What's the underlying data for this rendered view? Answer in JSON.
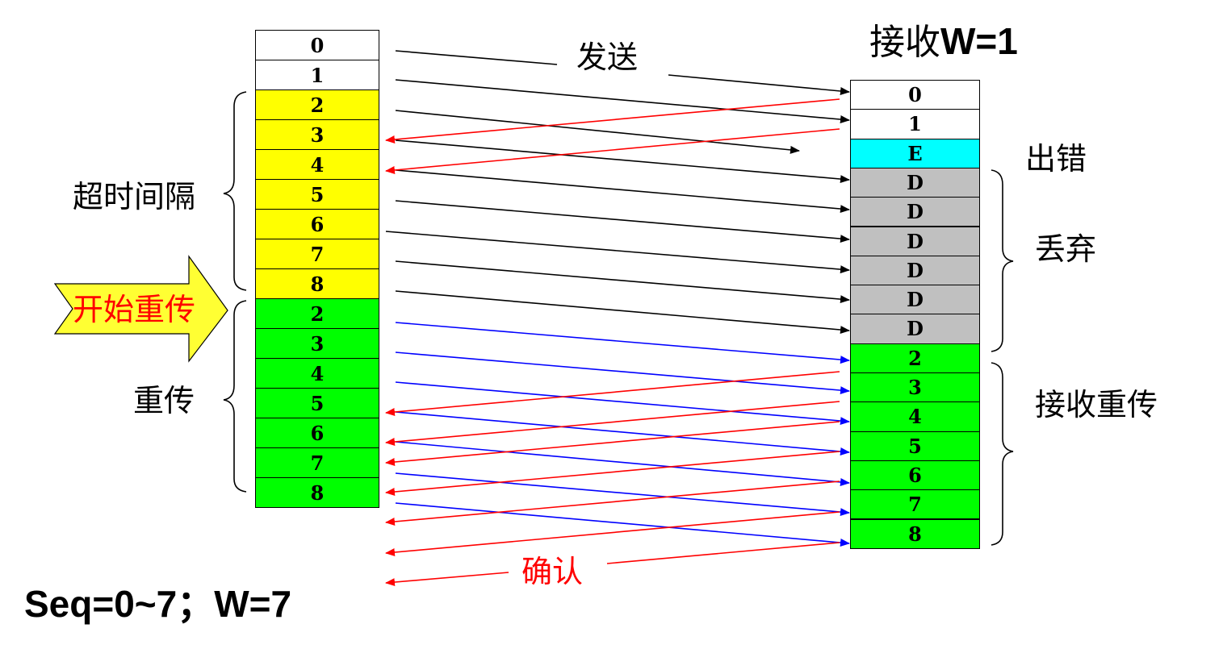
{
  "colors": {
    "white": "#ffffff",
    "yellow": "#ffff00",
    "green": "#00ff00",
    "cyan": "#00ffff",
    "gray": "#c0c0c0",
    "send_arrow": "#000000",
    "ack_arrow": "#ff0000",
    "resend_arrow": "#0000ff"
  },
  "sender": {
    "frames": [
      {
        "label": "0",
        "color": "white"
      },
      {
        "label": "1",
        "color": "white"
      },
      {
        "label": "2",
        "color": "yellow"
      },
      {
        "label": "3",
        "color": "yellow"
      },
      {
        "label": "4",
        "color": "yellow"
      },
      {
        "label": "5",
        "color": "yellow"
      },
      {
        "label": "6",
        "color": "yellow"
      },
      {
        "label": "7",
        "color": "yellow"
      },
      {
        "label": "8",
        "color": "yellow"
      },
      {
        "label": "2",
        "color": "green"
      },
      {
        "label": "3",
        "color": "green"
      },
      {
        "label": "4",
        "color": "green"
      },
      {
        "label": "5",
        "color": "green"
      },
      {
        "label": "6",
        "color": "green"
      },
      {
        "label": "7",
        "color": "green"
      },
      {
        "label": "8",
        "color": "green"
      }
    ],
    "timeout_label": "超时间隔",
    "resend_label": "重传",
    "start_resend_label": "开始重传"
  },
  "receiver": {
    "title_prefix": "接收",
    "title_suffix": "W=1",
    "frames": [
      {
        "label": "0",
        "color": "white"
      },
      {
        "label": "1",
        "color": "white"
      },
      {
        "label": "E",
        "color": "cyan"
      },
      {
        "label": "D",
        "color": "gray"
      },
      {
        "label": "D",
        "color": "gray"
      },
      {
        "label": "D",
        "color": "gray"
      },
      {
        "label": "D",
        "color": "gray"
      },
      {
        "label": "D",
        "color": "gray"
      },
      {
        "label": "D",
        "color": "gray"
      },
      {
        "label": "2",
        "color": "green"
      },
      {
        "label": "3",
        "color": "green"
      },
      {
        "label": "4",
        "color": "green"
      },
      {
        "label": "5",
        "color": "green"
      },
      {
        "label": "6",
        "color": "green"
      },
      {
        "label": "7",
        "color": "green"
      },
      {
        "label": "8",
        "color": "green"
      }
    ],
    "error_label": "出错",
    "discard_label": "丢弃",
    "receive_resend_label": "接收重传"
  },
  "send_label": "发送",
  "ack_label": "确认",
  "footer": "Seq=0~7；W=7"
}
